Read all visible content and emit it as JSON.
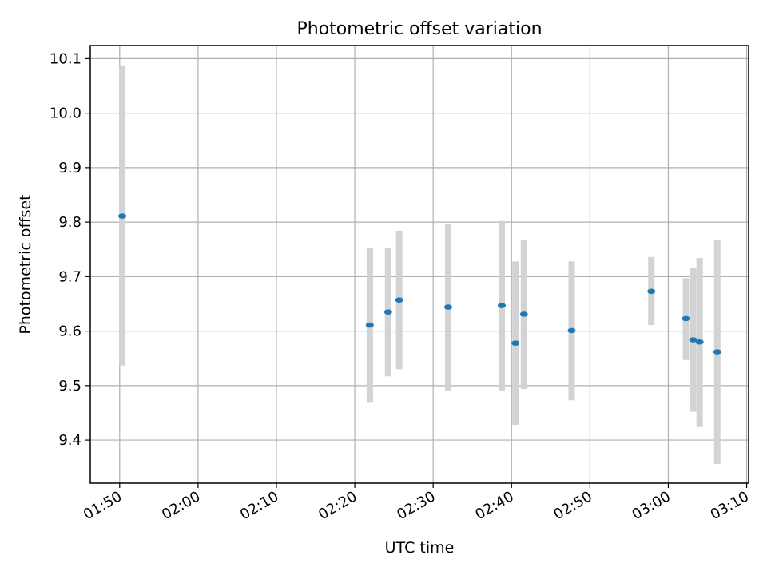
{
  "chart_data": {
    "type": "scatter",
    "title": "Photometric offset variation",
    "xlabel": "UTC time",
    "ylabel": "Photometric offset",
    "x_ticks": [
      "01:50",
      "02:00",
      "02:10",
      "02:20",
      "02:30",
      "02:40",
      "02:50",
      "03:00",
      "03:10"
    ],
    "y_ticks": [
      "9.4",
      "9.5",
      "9.6",
      "9.7",
      "9.8",
      "9.9",
      "10.0",
      "10.1"
    ],
    "xlim": [
      "01:46:15",
      "03:10:15"
    ],
    "ylim": [
      9.321,
      10.124
    ],
    "grid": true,
    "marker_color": "#1f77b4",
    "errorbar_color": "#d3d3d3",
    "points": [
      {
        "x": "01:50:20",
        "y": 9.811,
        "ymin": 9.537,
        "ymax": 10.086
      },
      {
        "x": "02:21:55",
        "y": 9.611,
        "ymin": 9.47,
        "ymax": 9.753
      },
      {
        "x": "02:24:15",
        "y": 9.635,
        "ymin": 9.517,
        "ymax": 9.752
      },
      {
        "x": "02:25:40",
        "y": 9.657,
        "ymin": 9.53,
        "ymax": 9.784
      },
      {
        "x": "02:31:55",
        "y": 9.644,
        "ymin": 9.491,
        "ymax": 9.797
      },
      {
        "x": "02:38:45",
        "y": 9.647,
        "ymin": 9.491,
        "ymax": 9.802
      },
      {
        "x": "02:40:30",
        "y": 9.578,
        "ymin": 9.428,
        "ymax": 9.728
      },
      {
        "x": "02:41:35",
        "y": 9.631,
        "ymin": 9.494,
        "ymax": 9.768
      },
      {
        "x": "02:47:40",
        "y": 9.601,
        "ymin": 9.473,
        "ymax": 9.728
      },
      {
        "x": "02:57:50",
        "y": 9.673,
        "ymin": 9.611,
        "ymax": 9.736
      },
      {
        "x": "03:02:15",
        "y": 9.623,
        "ymin": 9.547,
        "ymax": 9.697
      },
      {
        "x": "03:03:10",
        "y": 9.584,
        "ymin": 9.452,
        "ymax": 9.715
      },
      {
        "x": "03:04:00",
        "y": 9.58,
        "ymin": 9.424,
        "ymax": 9.734
      },
      {
        "x": "03:06:15",
        "y": 9.562,
        "ymin": 9.356,
        "ymax": 9.768
      }
    ]
  }
}
